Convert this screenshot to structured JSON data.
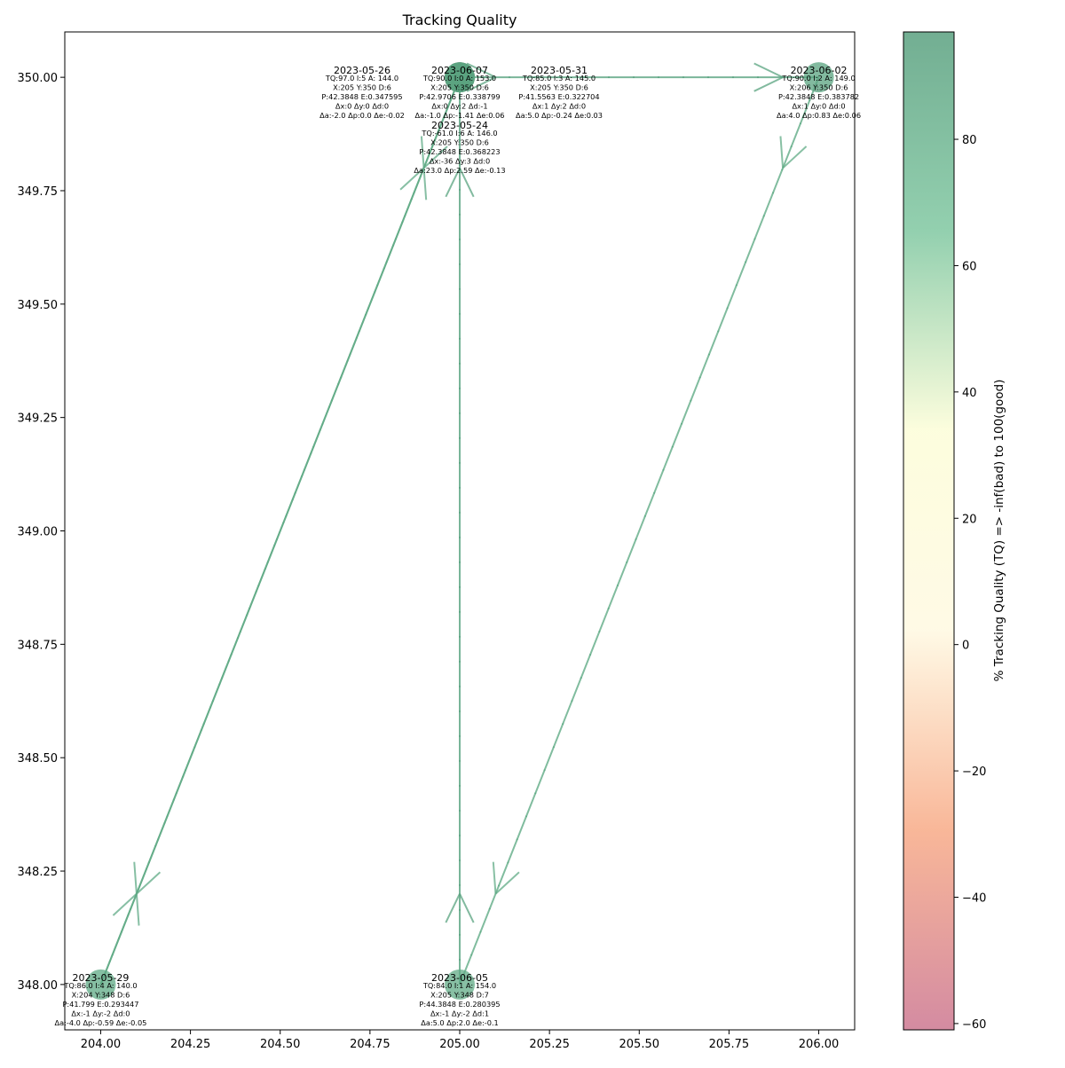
{
  "chart_data": {
    "type": "scatter",
    "title": "Tracking Quality",
    "xlabel": "",
    "ylabel": "",
    "xlim": [
      203.9,
      206.1
    ],
    "ylim": [
      347.9,
      350.1
    ],
    "x_ticks": [
      "204.00",
      "204.25",
      "204.50",
      "204.75",
      "205.00",
      "205.25",
      "205.50",
      "205.75",
      "206.00"
    ],
    "y_ticks": [
      "348.00",
      "348.25",
      "348.50",
      "348.75",
      "349.00",
      "349.25",
      "349.50",
      "349.75",
      "350.00"
    ],
    "colorbar": {
      "label": "% Tracking Quality (TQ) => -inf(bad) to 100(good)",
      "range": [
        -61,
        97
      ],
      "ticks": [
        "−60",
        "−40",
        "−20",
        "0",
        "20",
        "40",
        "60",
        "80"
      ],
      "colors": [
        "#c96e8a",
        "#f7a57f",
        "#fff8df",
        "#fcfdd5",
        "#78c49b",
        "#4f9a77"
      ]
    },
    "points": [
      {
        "date": "2023-05-24",
        "x": 205,
        "y": 350,
        "tq": -61.0,
        "lines": [
          "TQ:-61.0 I:6 A: 146.0",
          "X:205 Y:350 D:6",
          "P:42.3848 E:0.368223",
          "Δx:-36 Δy:3 Δd:0",
          "Δa:23.0 Δp:2.59 Δe:-0.13"
        ]
      },
      {
        "date": "2023-05-26",
        "x": 205,
        "y": 350,
        "tq": 97.0,
        "lines": [
          "TQ:97.0 I:5 A: 144.0",
          "X:205 Y:350 D:6",
          "P:42.3848 E:0.347595",
          "Δx:0 Δy:0 Δd:0",
          "Δa:-2.0 Δp:0.0 Δe:-0.02"
        ]
      },
      {
        "date": "2023-05-29",
        "x": 204,
        "y": 348,
        "tq": 86.0,
        "lines": [
          "TQ:86.0 I:4 A: 140.0",
          "X:204 Y:348 D:6",
          "P:41.799 E:0.293447",
          "Δx:-1 Δy:-2 Δd:0",
          "Δa:-4.0 Δp:-0.59 Δe:-0.05"
        ]
      },
      {
        "date": "2023-05-31",
        "x": 205,
        "y": 350,
        "tq": 85.0,
        "lines": [
          "TQ:85.0 I:3 A: 145.0",
          "X:205 Y:350 D:6",
          "P:41.5563 E:0.322704",
          "Δx:1 Δy:2 Δd:0",
          "Δa:5.0 Δp:-0.24 Δe:0.03"
        ]
      },
      {
        "date": "2023-06-02",
        "x": 206,
        "y": 350,
        "tq": 90.0,
        "lines": [
          "TQ:90.0 I:2 A: 149.0",
          "X:206 Y:350 D:6",
          "P:42.3848 E:0.383782",
          "Δx:1 Δy:0 Δd:0",
          "Δa:4.0 Δp:0.83 Δe:0.06"
        ]
      },
      {
        "date": "2023-06-05",
        "x": 205,
        "y": 348,
        "tq": 84.0,
        "lines": [
          "TQ:84.0 I:1 A: 154.0",
          "X:205 Y:348 D:7",
          "P:44.3848 E:0.280395",
          "Δx:-1 Δy:-2 Δd:1",
          "Δa:5.0 Δp:2.0 Δe:-0.1"
        ]
      },
      {
        "date": "2023-06-07",
        "x": 205,
        "y": 350,
        "tq": 90.0,
        "lines": [
          "TQ:90.0 I:0 A: 153.0",
          "X:205 Y:350 D:6",
          "P:42.9706 E:0.338799",
          "Δx:0 Δy:2 Δd:-1",
          "Δa:-1.0 Δp:-1.41 Δe:0.06"
        ]
      }
    ],
    "path": [
      {
        "from": "2023-05-24",
        "to": "2023-05-26"
      },
      {
        "from": "2023-05-26",
        "to": "2023-05-29"
      },
      {
        "from": "2023-05-29",
        "to": "2023-05-31"
      },
      {
        "from": "2023-05-31",
        "to": "2023-06-02"
      },
      {
        "from": "2023-06-02",
        "to": "2023-06-05"
      },
      {
        "from": "2023-06-05",
        "to": "2023-06-07"
      }
    ],
    "grid": false
  }
}
